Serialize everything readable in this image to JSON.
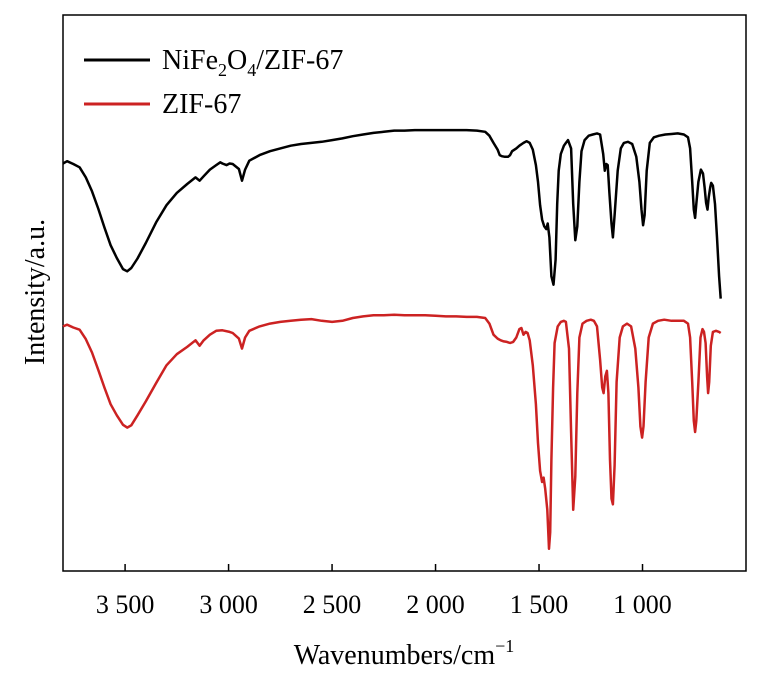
{
  "chart_data": {
    "type": "line",
    "xlabel": "Wavenumbers/cm",
    "xlabel_superscript": "−1",
    "ylabel": "Intensity/a.u.",
    "xlim": [
      3800,
      500
    ],
    "x_reversed": true,
    "x_ticks": [
      3500,
      3000,
      2500,
      2000,
      1500,
      1000
    ],
    "x_tick_labels": [
      "3 500",
      "3 000",
      "2 500",
      "2 000",
      "1 500",
      "1 000"
    ],
    "y_ticks": [],
    "ylim": [
      0,
      1
    ],
    "grid": false,
    "legend": {
      "position": "top-left"
    },
    "series": [
      {
        "name": "NiFe2O4/ZIF-67",
        "legend_parts": [
          "NiFe",
          "2",
          "O",
          "4",
          "/ZIF-67"
        ],
        "color": "#000000",
        "points": [
          [
            3800,
            0.733
          ],
          [
            3780,
            0.737
          ],
          [
            3750,
            0.732
          ],
          [
            3720,
            0.726
          ],
          [
            3690,
            0.708
          ],
          [
            3660,
            0.683
          ],
          [
            3630,
            0.652
          ],
          [
            3600,
            0.618
          ],
          [
            3570,
            0.586
          ],
          [
            3540,
            0.563
          ],
          [
            3510,
            0.543
          ],
          [
            3490,
            0.539
          ],
          [
            3470,
            0.545
          ],
          [
            3440,
            0.562
          ],
          [
            3400,
            0.59
          ],
          [
            3350,
            0.627
          ],
          [
            3300,
            0.658
          ],
          [
            3250,
            0.68
          ],
          [
            3200,
            0.696
          ],
          [
            3160,
            0.708
          ],
          [
            3140,
            0.702
          ],
          [
            3120,
            0.71
          ],
          [
            3090,
            0.722
          ],
          [
            3060,
            0.73
          ],
          [
            3040,
            0.735
          ],
          [
            3030,
            0.733
          ],
          [
            3010,
            0.73
          ],
          [
            2995,
            0.733
          ],
          [
            2980,
            0.732
          ],
          [
            2950,
            0.723
          ],
          [
            2935,
            0.702
          ],
          [
            2920,
            0.722
          ],
          [
            2900,
            0.738
          ],
          [
            2850,
            0.748
          ],
          [
            2800,
            0.755
          ],
          [
            2750,
            0.76
          ],
          [
            2700,
            0.765
          ],
          [
            2650,
            0.768
          ],
          [
            2600,
            0.77
          ],
          [
            2550,
            0.772
          ],
          [
            2500,
            0.775
          ],
          [
            2450,
            0.778
          ],
          [
            2400,
            0.782
          ],
          [
            2350,
            0.785
          ],
          [
            2300,
            0.788
          ],
          [
            2250,
            0.79
          ],
          [
            2200,
            0.792
          ],
          [
            2150,
            0.792
          ],
          [
            2100,
            0.793
          ],
          [
            2050,
            0.793
          ],
          [
            2000,
            0.793
          ],
          [
            1950,
            0.793
          ],
          [
            1900,
            0.793
          ],
          [
            1850,
            0.793
          ],
          [
            1800,
            0.792
          ],
          [
            1760,
            0.79
          ],
          [
            1740,
            0.783
          ],
          [
            1720,
            0.77
          ],
          [
            1700,
            0.758
          ],
          [
            1690,
            0.748
          ],
          [
            1680,
            0.746
          ],
          [
            1665,
            0.745
          ],
          [
            1650,
            0.745
          ],
          [
            1640,
            0.748
          ],
          [
            1630,
            0.755
          ],
          [
            1610,
            0.76
          ],
          [
            1595,
            0.765
          ],
          [
            1575,
            0.77
          ],
          [
            1560,
            0.773
          ],
          [
            1545,
            0.77
          ],
          [
            1530,
            0.758
          ],
          [
            1515,
            0.73
          ],
          [
            1505,
            0.7
          ],
          [
            1495,
            0.658
          ],
          [
            1485,
            0.632
          ],
          [
            1475,
            0.62
          ],
          [
            1465,
            0.615
          ],
          [
            1458,
            0.625
          ],
          [
            1450,
            0.6
          ],
          [
            1440,
            0.53
          ],
          [
            1430,
            0.515
          ],
          [
            1420,
            0.56
          ],
          [
            1412,
            0.66
          ],
          [
            1405,
            0.72
          ],
          [
            1395,
            0.75
          ],
          [
            1380,
            0.765
          ],
          [
            1370,
            0.77
          ],
          [
            1360,
            0.775
          ],
          [
            1345,
            0.76
          ],
          [
            1335,
            0.66
          ],
          [
            1325,
            0.595
          ],
          [
            1315,
            0.62
          ],
          [
            1305,
            0.7
          ],
          [
            1295,
            0.755
          ],
          [
            1280,
            0.775
          ],
          [
            1260,
            0.783
          ],
          [
            1240,
            0.785
          ],
          [
            1220,
            0.787
          ],
          [
            1205,
            0.785
          ],
          [
            1190,
            0.75
          ],
          [
            1182,
            0.72
          ],
          [
            1175,
            0.732
          ],
          [
            1168,
            0.73
          ],
          [
            1160,
            0.68
          ],
          [
            1150,
            0.625
          ],
          [
            1143,
            0.6
          ],
          [
            1135,
            0.64
          ],
          [
            1120,
            0.72
          ],
          [
            1105,
            0.76
          ],
          [
            1090,
            0.77
          ],
          [
            1070,
            0.772
          ],
          [
            1050,
            0.768
          ],
          [
            1030,
            0.745
          ],
          [
            1015,
            0.7
          ],
          [
            1005,
            0.65
          ],
          [
            997,
            0.622
          ],
          [
            990,
            0.64
          ],
          [
            980,
            0.72
          ],
          [
            965,
            0.77
          ],
          [
            945,
            0.78
          ],
          [
            920,
            0.783
          ],
          [
            890,
            0.785
          ],
          [
            860,
            0.786
          ],
          [
            830,
            0.787
          ],
          [
            800,
            0.785
          ],
          [
            780,
            0.78
          ],
          [
            770,
            0.76
          ],
          [
            760,
            0.7
          ],
          [
            752,
            0.65
          ],
          [
            746,
            0.635
          ],
          [
            740,
            0.66
          ],
          [
            730,
            0.7
          ],
          [
            718,
            0.722
          ],
          [
            708,
            0.715
          ],
          [
            700,
            0.69
          ],
          [
            693,
            0.662
          ],
          [
            686,
            0.65
          ],
          [
            680,
            0.672
          ],
          [
            673,
            0.69
          ],
          [
            668,
            0.698
          ],
          [
            660,
            0.693
          ],
          [
            650,
            0.66
          ],
          [
            640,
            0.6
          ],
          [
            630,
            0.53
          ],
          [
            622,
            0.49
          ]
        ]
      },
      {
        "name": "ZIF-67",
        "legend_parts": [
          "ZIF-67"
        ],
        "color": "#cc2222",
        "points": [
          [
            3800,
            0.44
          ],
          [
            3780,
            0.443
          ],
          [
            3750,
            0.438
          ],
          [
            3720,
            0.434
          ],
          [
            3690,
            0.417
          ],
          [
            3660,
            0.393
          ],
          [
            3630,
            0.362
          ],
          [
            3600,
            0.33
          ],
          [
            3570,
            0.3
          ],
          [
            3540,
            0.28
          ],
          [
            3510,
            0.263
          ],
          [
            3490,
            0.258
          ],
          [
            3470,
            0.262
          ],
          [
            3440,
            0.28
          ],
          [
            3400,
            0.305
          ],
          [
            3350,
            0.338
          ],
          [
            3300,
            0.37
          ],
          [
            3250,
            0.39
          ],
          [
            3200,
            0.403
          ],
          [
            3160,
            0.415
          ],
          [
            3140,
            0.405
          ],
          [
            3120,
            0.415
          ],
          [
            3090,
            0.425
          ],
          [
            3060,
            0.432
          ],
          [
            3030,
            0.433
          ],
          [
            2995,
            0.43
          ],
          [
            2980,
            0.428
          ],
          [
            2950,
            0.418
          ],
          [
            2935,
            0.4
          ],
          [
            2920,
            0.42
          ],
          [
            2900,
            0.432
          ],
          [
            2850,
            0.44
          ],
          [
            2800,
            0.445
          ],
          [
            2750,
            0.448
          ],
          [
            2700,
            0.45
          ],
          [
            2650,
            0.452
          ],
          [
            2600,
            0.453
          ],
          [
            2550,
            0.45
          ],
          [
            2500,
            0.448
          ],
          [
            2450,
            0.45
          ],
          [
            2400,
            0.455
          ],
          [
            2350,
            0.458
          ],
          [
            2300,
            0.46
          ],
          [
            2250,
            0.46
          ],
          [
            2200,
            0.461
          ],
          [
            2150,
            0.46
          ],
          [
            2100,
            0.46
          ],
          [
            2050,
            0.46
          ],
          [
            2000,
            0.459
          ],
          [
            1950,
            0.458
          ],
          [
            1900,
            0.458
          ],
          [
            1850,
            0.457
          ],
          [
            1800,
            0.457
          ],
          [
            1760,
            0.455
          ],
          [
            1740,
            0.445
          ],
          [
            1720,
            0.425
          ],
          [
            1700,
            0.418
          ],
          [
            1685,
            0.415
          ],
          [
            1670,
            0.413
          ],
          [
            1655,
            0.412
          ],
          [
            1640,
            0.41
          ],
          [
            1625,
            0.412
          ],
          [
            1610,
            0.42
          ],
          [
            1595,
            0.435
          ],
          [
            1585,
            0.437
          ],
          [
            1575,
            0.425
          ],
          [
            1565,
            0.43
          ],
          [
            1555,
            0.428
          ],
          [
            1545,
            0.415
          ],
          [
            1530,
            0.37
          ],
          [
            1515,
            0.3
          ],
          [
            1505,
            0.23
          ],
          [
            1495,
            0.18
          ],
          [
            1485,
            0.16
          ],
          [
            1478,
            0.168
          ],
          [
            1470,
            0.148
          ],
          [
            1460,
            0.11
          ],
          [
            1452,
            0.04
          ],
          [
            1446,
            0.07
          ],
          [
            1440,
            0.2
          ],
          [
            1432,
            0.33
          ],
          [
            1425,
            0.41
          ],
          [
            1410,
            0.44
          ],
          [
            1395,
            0.448
          ],
          [
            1380,
            0.45
          ],
          [
            1370,
            0.448
          ],
          [
            1355,
            0.4
          ],
          [
            1345,
            0.25
          ],
          [
            1335,
            0.11
          ],
          [
            1325,
            0.17
          ],
          [
            1315,
            0.32
          ],
          [
            1305,
            0.42
          ],
          [
            1290,
            0.445
          ],
          [
            1270,
            0.45
          ],
          [
            1250,
            0.452
          ],
          [
            1235,
            0.45
          ],
          [
            1220,
            0.44
          ],
          [
            1205,
            0.38
          ],
          [
            1195,
            0.33
          ],
          [
            1188,
            0.32
          ],
          [
            1180,
            0.35
          ],
          [
            1172,
            0.36
          ],
          [
            1165,
            0.32
          ],
          [
            1157,
            0.2
          ],
          [
            1150,
            0.13
          ],
          [
            1143,
            0.12
          ],
          [
            1135,
            0.19
          ],
          [
            1125,
            0.34
          ],
          [
            1110,
            0.42
          ],
          [
            1095,
            0.44
          ],
          [
            1075,
            0.445
          ],
          [
            1055,
            0.44
          ],
          [
            1035,
            0.4
          ],
          [
            1020,
            0.33
          ],
          [
            1010,
            0.26
          ],
          [
            1002,
            0.24
          ],
          [
            995,
            0.26
          ],
          [
            985,
            0.34
          ],
          [
            970,
            0.42
          ],
          [
            950,
            0.445
          ],
          [
            925,
            0.45
          ],
          [
            895,
            0.452
          ],
          [
            860,
            0.45
          ],
          [
            830,
            0.45
          ],
          [
            800,
            0.45
          ],
          [
            780,
            0.445
          ],
          [
            770,
            0.42
          ],
          [
            760,
            0.34
          ],
          [
            752,
            0.27
          ],
          [
            746,
            0.25
          ],
          [
            740,
            0.27
          ],
          [
            730,
            0.34
          ],
          [
            720,
            0.42
          ],
          [
            710,
            0.435
          ],
          [
            703,
            0.43
          ],
          [
            695,
            0.41
          ],
          [
            688,
            0.35
          ],
          [
            683,
            0.32
          ],
          [
            678,
            0.34
          ],
          [
            670,
            0.405
          ],
          [
            660,
            0.43
          ],
          [
            645,
            0.432
          ],
          [
            630,
            0.43
          ],
          [
            622,
            0.428
          ]
        ]
      }
    ]
  }
}
